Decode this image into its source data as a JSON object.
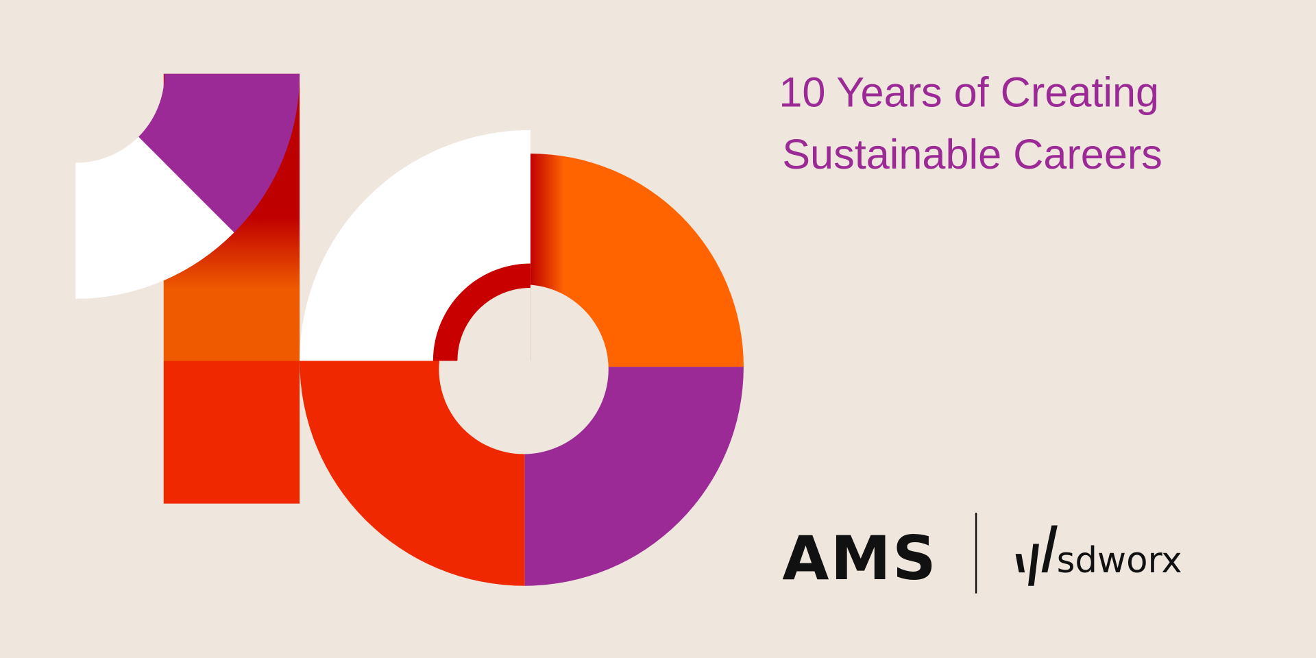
{
  "headline": {
    "line1": "10 Years of Creating",
    "line2": "Sustainable Careers"
  },
  "logos": {
    "ams": "AMS",
    "sdworx": "sdworx"
  }
}
